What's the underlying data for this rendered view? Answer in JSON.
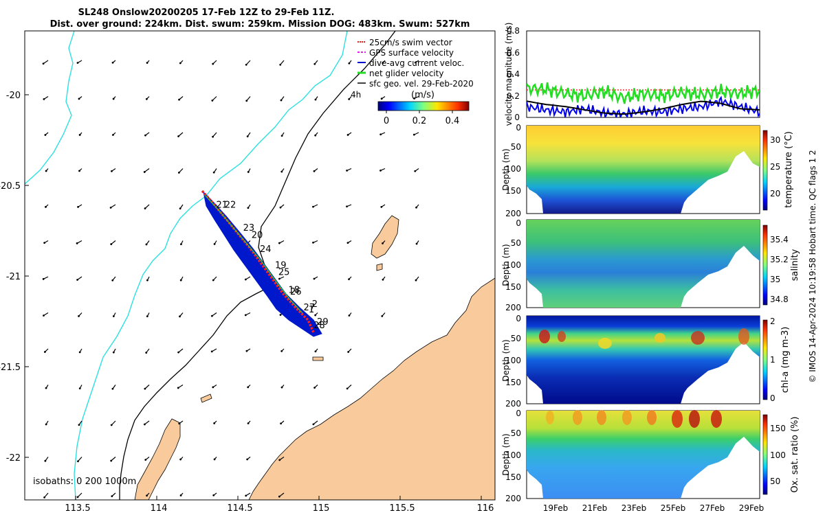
{
  "figure": {
    "title_line1": "SL248 Onslow20200205 17-Feb 12Z to 29-Feb 11Z.",
    "title_line2": "Dist. over ground: 224km. Dist. swum: 259km. Mission DOG: 483km. Swum: 527km",
    "footer": "© IMOS 14-Apr-2024 10:19:58 Hobart time. QC flags 1  2"
  },
  "map": {
    "x_ticks": [
      "113.5",
      "114",
      "114.5",
      "115",
      "115.5",
      "116"
    ],
    "y_ticks": [
      "-20",
      "-20.5",
      "-21",
      "-21.5",
      "-22"
    ],
    "xlim": [
      113.25,
      116.05
    ],
    "ylim": [
      -22.25,
      -19.6
    ],
    "legend": [
      {
        "label": "25cm/s swim vector",
        "color": "#e41a1c"
      },
      {
        "label": "GPS surface velocity",
        "color": "#e020e0"
      },
      {
        "label": "dive-avg current veloc.",
        "color": "#0000cc"
      },
      {
        "label": "net glider velocity",
        "color": "#22dd22"
      },
      {
        "label": "sfc geo. vel. 29-Feb-2020",
        "color": "#000000"
      }
    ],
    "corner_label": "4h",
    "colorbar": {
      "label": "(m/s)",
      "ticks": [
        "0",
        "0.2",
        "0.4"
      ],
      "range": [
        0,
        0.5
      ]
    },
    "isobath_text": "isobaths: 0   200  1000m",
    "day_labels": [
      {
        "text": "21",
        "lon": 114.39,
        "lat": -20.6
      },
      {
        "text": "22",
        "lon": 114.44,
        "lat": -20.6
      },
      {
        "text": "23",
        "lon": 114.55,
        "lat": -20.73
      },
      {
        "text": "20",
        "lon": 114.6,
        "lat": -20.77
      },
      {
        "text": "24",
        "lon": 114.65,
        "lat": -20.85
      },
      {
        "text": "19",
        "lon": 114.74,
        "lat": -20.94
      },
      {
        "text": "25",
        "lon": 114.76,
        "lat": -20.98
      },
      {
        "text": "18",
        "lon": 114.82,
        "lat": -21.08
      },
      {
        "text": "26",
        "lon": 114.83,
        "lat": -21.09
      },
      {
        "text": "2",
        "lon": 114.96,
        "lat": -21.16
      },
      {
        "text": "27",
        "lon": 114.91,
        "lat": -21.18
      },
      {
        "text": "1",
        "lon": 114.94,
        "lat": -21.19
      },
      {
        "text": "29",
        "lon": 114.99,
        "lat": -21.26
      },
      {
        "text": "28",
        "lon": 114.97,
        "lat": -21.28
      }
    ]
  },
  "panels": {
    "velocity": {
      "ylabel": "velocity magnitude (m/s)",
      "yticks": [
        "0",
        "0.2",
        "0.4",
        "0.6",
        "0.8"
      ]
    },
    "depth_ylabel": "Depth (m)",
    "depth_ticks": [
      "0",
      "50",
      "100",
      "150",
      "200"
    ],
    "time_ticks": [
      "19Feb",
      "21Feb",
      "23Feb",
      "25Feb",
      "27Feb",
      "29Feb"
    ],
    "temperature": {
      "label": "temperature (°C)",
      "ticks": [
        "20",
        "25",
        "30"
      ],
      "range": [
        17,
        32
      ]
    },
    "salinity": {
      "label": "salinity",
      "ticks": [
        "34.8",
        "35",
        "35.2",
        "35.4"
      ],
      "range": [
        34.72,
        35.5
      ]
    },
    "chla": {
      "label": "chl-a (mg m-3)",
      "ticks": [
        "0",
        "1",
        "2"
      ],
      "range": [
        0,
        2
      ]
    },
    "oxygen": {
      "label": "Ox. sat. ratio (%)",
      "ticks": [
        "50",
        "100",
        "150"
      ],
      "range": [
        25,
        175
      ]
    }
  },
  "chart_data": [
    {
      "type": "scatter",
      "title": "SL248 Onslow20200205 17-Feb 12Z to 29-Feb 11Z.",
      "xlim": [
        113.25,
        116.05
      ],
      "ylim": [
        -22.25,
        -19.6
      ],
      "track": {
        "lon": [
          114.3,
          114.4,
          114.5,
          114.6,
          114.7,
          114.8,
          114.85,
          114.9,
          114.95,
          115.0
        ],
        "lat": [
          -20.55,
          -20.65,
          -20.75,
          -20.85,
          -20.95,
          -21.05,
          -21.15,
          -21.2,
          -21.26,
          -21.32
        ]
      }
    },
    {
      "type": "line",
      "ylabel": "velocity magnitude (m/s)",
      "ylim": [
        0,
        0.8
      ],
      "x": [
        "17Feb",
        "18Feb",
        "19Feb",
        "20Feb",
        "21Feb",
        "22Feb",
        "23Feb",
        "24Feb",
        "25Feb",
        "26Feb",
        "27Feb",
        "28Feb",
        "29Feb"
      ],
      "series": [
        {
          "name": "net glider velocity",
          "values": [
            0.27,
            0.26,
            0.22,
            0.2,
            0.24,
            0.18,
            0.22,
            0.2,
            0.23,
            0.21,
            0.24,
            0.22,
            0.25
          ]
        },
        {
          "name": "dive-avg current veloc.",
          "values": [
            0.1,
            0.07,
            0.05,
            0.08,
            0.04,
            0.03,
            0.06,
            0.05,
            0.08,
            0.1,
            0.15,
            0.1,
            0.05
          ]
        },
        {
          "name": "25cm/s swim vector",
          "values": [
            0.25,
            0.25,
            0.25,
            0.25,
            0.25,
            0.25,
            0.25,
            0.25,
            0.25,
            0.25,
            0.25,
            0.25,
            0.25
          ]
        },
        {
          "values": [
            0.15,
            0.12,
            0.1,
            0.07,
            0.04,
            0.03,
            0.05,
            0.08,
            0.12,
            0.15,
            0.13,
            0.08,
            0.07
          ]
        }
      ]
    },
    {
      "type": "heatmap",
      "ylabel": "Depth (m)",
      "zlabel": "temperature (°C)",
      "ylim": [
        200,
        0
      ],
      "zlim": [
        17,
        32
      ]
    },
    {
      "type": "heatmap",
      "ylabel": "Depth (m)",
      "zlabel": "salinity",
      "ylim": [
        200,
        0
      ],
      "zlim": [
        34.72,
        35.5
      ]
    },
    {
      "type": "heatmap",
      "ylabel": "Depth (m)",
      "zlabel": "chl-a (mg m-3)",
      "ylim": [
        200,
        0
      ],
      "zlim": [
        0,
        2
      ]
    },
    {
      "type": "heatmap",
      "ylabel": "Depth (m)",
      "zlabel": "Ox. sat. ratio (%)",
      "ylim": [
        200,
        0
      ],
      "zlim": [
        25,
        175
      ]
    }
  ]
}
